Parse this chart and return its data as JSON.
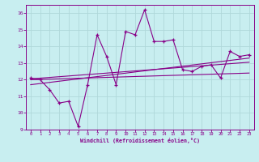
{
  "title": "",
  "xlabel": "Windchill (Refroidissement éolien,°C)",
  "ylabel": "",
  "bg_color": "#c8eef0",
  "grid_color": "#b0d8da",
  "line_color": "#880088",
  "xlim": [
    -0.5,
    23.5
  ],
  "ylim": [
    9,
    16.5
  ],
  "xticks": [
    0,
    1,
    2,
    3,
    4,
    5,
    6,
    7,
    8,
    9,
    10,
    11,
    12,
    13,
    14,
    15,
    16,
    17,
    18,
    19,
    20,
    21,
    22,
    23
  ],
  "yticks": [
    9,
    10,
    11,
    12,
    13,
    14,
    15,
    16
  ],
  "main_x": [
    0,
    1,
    2,
    3,
    4,
    5,
    6,
    7,
    8,
    9,
    10,
    11,
    12,
    13,
    14,
    15,
    16,
    17,
    18,
    19,
    20,
    21,
    22,
    23
  ],
  "main_y": [
    12.1,
    12.0,
    11.4,
    10.6,
    10.7,
    9.2,
    11.7,
    14.7,
    13.4,
    11.7,
    14.9,
    14.7,
    16.2,
    14.3,
    14.3,
    14.4,
    12.6,
    12.5,
    12.8,
    12.9,
    12.1,
    13.7,
    13.4,
    13.5
  ],
  "line2_x": [
    0,
    23
  ],
  "line2_y": [
    12.0,
    12.4
  ],
  "line3_x": [
    0,
    23
  ],
  "line3_y": [
    12.05,
    13.05
  ],
  "line4_x": [
    0,
    23
  ],
  "line4_y": [
    11.7,
    13.3
  ]
}
